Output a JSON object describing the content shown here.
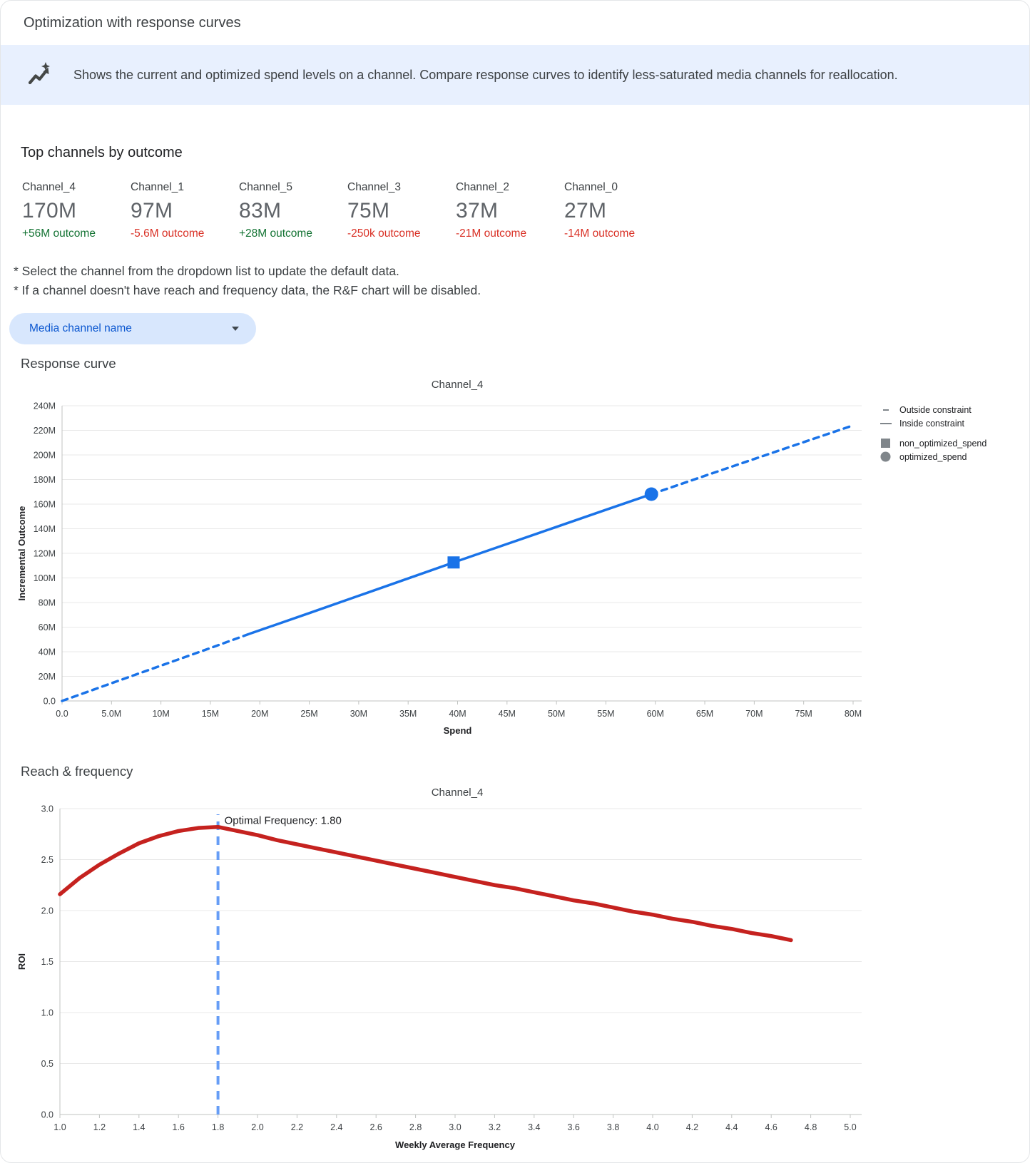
{
  "header": {
    "title": "Optimization with response curves"
  },
  "banner": {
    "icon": "insights-icon",
    "text": "Shows the current and optimized spend levels on a channel. Compare response curves to identify less-saturated media channels for reallocation."
  },
  "top_channels": {
    "heading": "Top channels by outcome",
    "cards": [
      {
        "name": "Channel_4",
        "value": "170M",
        "delta": "+56M outcome",
        "delta_color": "#137333"
      },
      {
        "name": "Channel_1",
        "value": "97M",
        "delta": "-5.6M outcome",
        "delta_color": "#d93025"
      },
      {
        "name": "Channel_5",
        "value": "83M",
        "delta": "+28M outcome",
        "delta_color": "#137333"
      },
      {
        "name": "Channel_3",
        "value": "75M",
        "delta": "-250k outcome",
        "delta_color": "#d93025"
      },
      {
        "name": "Channel_2",
        "value": "37M",
        "delta": "-21M outcome",
        "delta_color": "#d93025"
      },
      {
        "name": "Channel_0",
        "value": "27M",
        "delta": "-14M outcome",
        "delta_color": "#d93025"
      }
    ]
  },
  "notes": [
    "* Select the channel from the dropdown list to update the default data.",
    "* If a channel doesn't have reach and frequency data, the R&F chart will be disabled."
  ],
  "dropdown": {
    "label": "Media channel name",
    "icon": "caret-down-icon"
  },
  "sections": {
    "response_curve": "Response curve",
    "reach_frequency": "Reach & frequency"
  },
  "chart_data": [
    {
      "type": "line",
      "title": "Channel_4",
      "xlabel": "Spend",
      "ylabel": "Incremental Outcome",
      "xlim": [
        0,
        80
      ],
      "ylim": [
        0,
        240
      ],
      "units": "millions",
      "x_ticks": [
        "0.0",
        "5.0M",
        "10M",
        "15M",
        "20M",
        "25M",
        "30M",
        "35M",
        "40M",
        "45M",
        "50M",
        "55M",
        "60M",
        "65M",
        "70M",
        "75M",
        "80M"
      ],
      "y_ticks": [
        "0.0",
        "20M",
        "40M",
        "60M",
        "80M",
        "100M",
        "120M",
        "140M",
        "160M",
        "180M",
        "200M",
        "220M",
        "240M"
      ],
      "grid": true,
      "line_color": "#1a73e8",
      "points": [
        [
          0,
          0
        ],
        [
          5,
          14.4
        ],
        [
          10,
          28.7
        ],
        [
          15,
          43.0
        ],
        [
          19,
          54.7
        ],
        [
          25,
          71.4
        ],
        [
          30,
          85.5
        ],
        [
          35,
          99.6
        ],
        [
          39.6,
          112.6
        ],
        [
          45,
          127.6
        ],
        [
          50,
          141.5
        ],
        [
          55,
          155.4
        ],
        [
          59.6,
          168.1
        ],
        [
          65,
          183.0
        ],
        [
          70,
          196.7
        ],
        [
          75,
          210.4
        ],
        [
          80,
          224.0
        ]
      ],
      "constraint_range": [
        19,
        59.6
      ],
      "markers": [
        {
          "name": "non_optimized_spend",
          "shape": "square",
          "x": 39.6,
          "y": 112.6
        },
        {
          "name": "optimized_spend",
          "shape": "circle",
          "x": 59.6,
          "y": 168.1
        }
      ],
      "legend": {
        "position": "right",
        "symbol_color": "#80868b",
        "items": [
          {
            "label": "Outside constraint",
            "symbol": "dash-short"
          },
          {
            "label": "Inside constraint",
            "symbol": "dash-long"
          },
          {
            "label": "non_optimized_spend",
            "symbol": "square"
          },
          {
            "label": "optimized_spend",
            "symbol": "circle"
          }
        ]
      }
    },
    {
      "type": "line",
      "title": "Channel_4",
      "xlabel": "Weekly Average Frequency",
      "ylabel": "ROI",
      "xlim": [
        1.0,
        5.0
      ],
      "ylim": [
        0,
        3.0
      ],
      "x_ticks": [
        "1.0",
        "1.2",
        "1.4",
        "1.6",
        "1.8",
        "2.0",
        "2.2",
        "2.4",
        "2.6",
        "2.8",
        "3.0",
        "3.2",
        "3.4",
        "3.6",
        "3.8",
        "4.0",
        "4.2",
        "4.4",
        "4.6",
        "4.8",
        "5.0"
      ],
      "y_ticks": [
        "0.0",
        "0.5",
        "1.0",
        "1.5",
        "2.0",
        "2.5",
        "3.0"
      ],
      "grid": true,
      "line_color": "#c5221f",
      "points": [
        [
          1.0,
          2.16
        ],
        [
          1.1,
          2.32
        ],
        [
          1.2,
          2.45
        ],
        [
          1.3,
          2.56
        ],
        [
          1.4,
          2.66
        ],
        [
          1.5,
          2.73
        ],
        [
          1.6,
          2.78
        ],
        [
          1.7,
          2.81
        ],
        [
          1.8,
          2.82
        ],
        [
          1.9,
          2.78
        ],
        [
          2.0,
          2.74
        ],
        [
          2.1,
          2.69
        ],
        [
          2.2,
          2.65
        ],
        [
          2.3,
          2.61
        ],
        [
          2.4,
          2.57
        ],
        [
          2.5,
          2.53
        ],
        [
          2.6,
          2.49
        ],
        [
          2.7,
          2.45
        ],
        [
          2.8,
          2.41
        ],
        [
          2.9,
          2.37
        ],
        [
          3.0,
          2.33
        ],
        [
          3.1,
          2.29
        ],
        [
          3.2,
          2.25
        ],
        [
          3.3,
          2.22
        ],
        [
          3.4,
          2.18
        ],
        [
          3.5,
          2.14
        ],
        [
          3.6,
          2.1
        ],
        [
          3.7,
          2.07
        ],
        [
          3.8,
          2.03
        ],
        [
          3.9,
          1.99
        ],
        [
          4.0,
          1.96
        ],
        [
          4.1,
          1.92
        ],
        [
          4.2,
          1.89
        ],
        [
          4.3,
          1.85
        ],
        [
          4.4,
          1.82
        ],
        [
          4.5,
          1.78
        ],
        [
          4.6,
          1.75
        ],
        [
          4.7,
          1.71
        ]
      ],
      "optimal_frequency": 1.8,
      "annotation": {
        "label": "Optimal Frequency: 1.80",
        "x": 1.8,
        "y": 2.85
      },
      "vline_color": "#669df6"
    }
  ]
}
